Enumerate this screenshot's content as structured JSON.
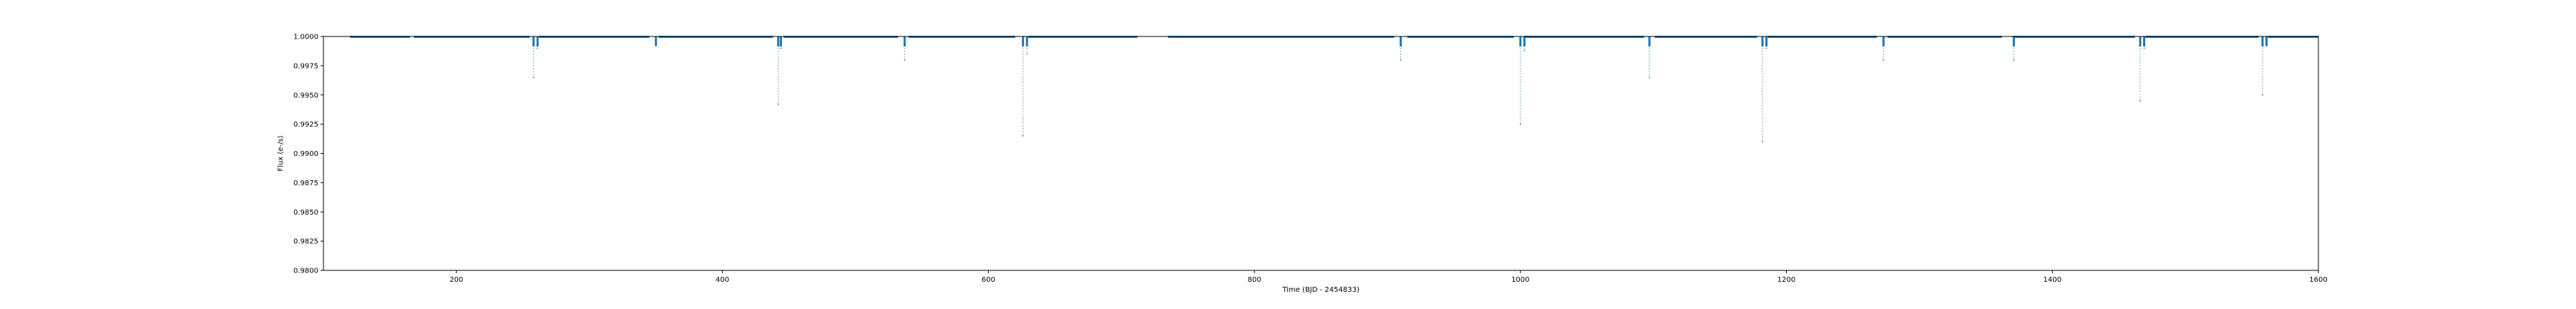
{
  "chart_data": {
    "type": "scatter",
    "title": "",
    "xlabel": "Time (BJD - 2454833)",
    "ylabel": "Flux (e-/s)",
    "xlim": [
      100,
      1600
    ],
    "ylim": [
      0.98,
      1.0
    ],
    "xticks": [
      200,
      400,
      600,
      800,
      1000,
      1200,
      1400,
      1600
    ],
    "yticks": [
      0.98,
      0.9825,
      0.985,
      0.9875,
      0.99,
      0.9925,
      0.995,
      0.9975,
      1.0
    ],
    "grid": false,
    "series": [
      {
        "color": "#1f77b4",
        "baseline_flux": 1.0,
        "baseline_segments": [
          [
            120,
            165
          ],
          [
            168,
            255
          ],
          [
            262,
            345
          ],
          [
            352,
            438
          ],
          [
            446,
            532
          ],
          [
            540,
            620
          ],
          [
            630,
            712
          ],
          [
            735,
            905
          ],
          [
            915,
            995
          ],
          [
            1003,
            1093
          ],
          [
            1101,
            1178
          ],
          [
            1186,
            1268
          ],
          [
            1276,
            1362
          ],
          [
            1370,
            1462
          ],
          [
            1470,
            1555
          ],
          [
            1562,
            1600
          ]
        ],
        "dips": [
          {
            "time": 258,
            "min_flux": 0.9965
          },
          {
            "time": 261,
            "min_flux": 0.999
          },
          {
            "time": 350,
            "min_flux": 0.9992
          },
          {
            "time": 442,
            "min_flux": 0.9942
          },
          {
            "time": 444,
            "min_flux": 0.999
          },
          {
            "time": 537,
            "min_flux": 0.998
          },
          {
            "time": 626,
            "min_flux": 0.9915
          },
          {
            "time": 629,
            "min_flux": 0.9985
          },
          {
            "time": 910,
            "min_flux": 0.998
          },
          {
            "time": 1000,
            "min_flux": 0.9925
          },
          {
            "time": 1003,
            "min_flux": 0.9988
          },
          {
            "time": 1097,
            "min_flux": 0.9965
          },
          {
            "time": 1182,
            "min_flux": 0.991
          },
          {
            "time": 1185,
            "min_flux": 0.999
          },
          {
            "time": 1273,
            "min_flux": 0.998
          },
          {
            "time": 1371,
            "min_flux": 0.998
          },
          {
            "time": 1466,
            "min_flux": 0.9945
          },
          {
            "time": 1469,
            "min_flux": 0.999
          },
          {
            "time": 1558,
            "min_flux": 0.995
          },
          {
            "time": 1561,
            "min_flux": 0.9992
          }
        ]
      }
    ]
  }
}
